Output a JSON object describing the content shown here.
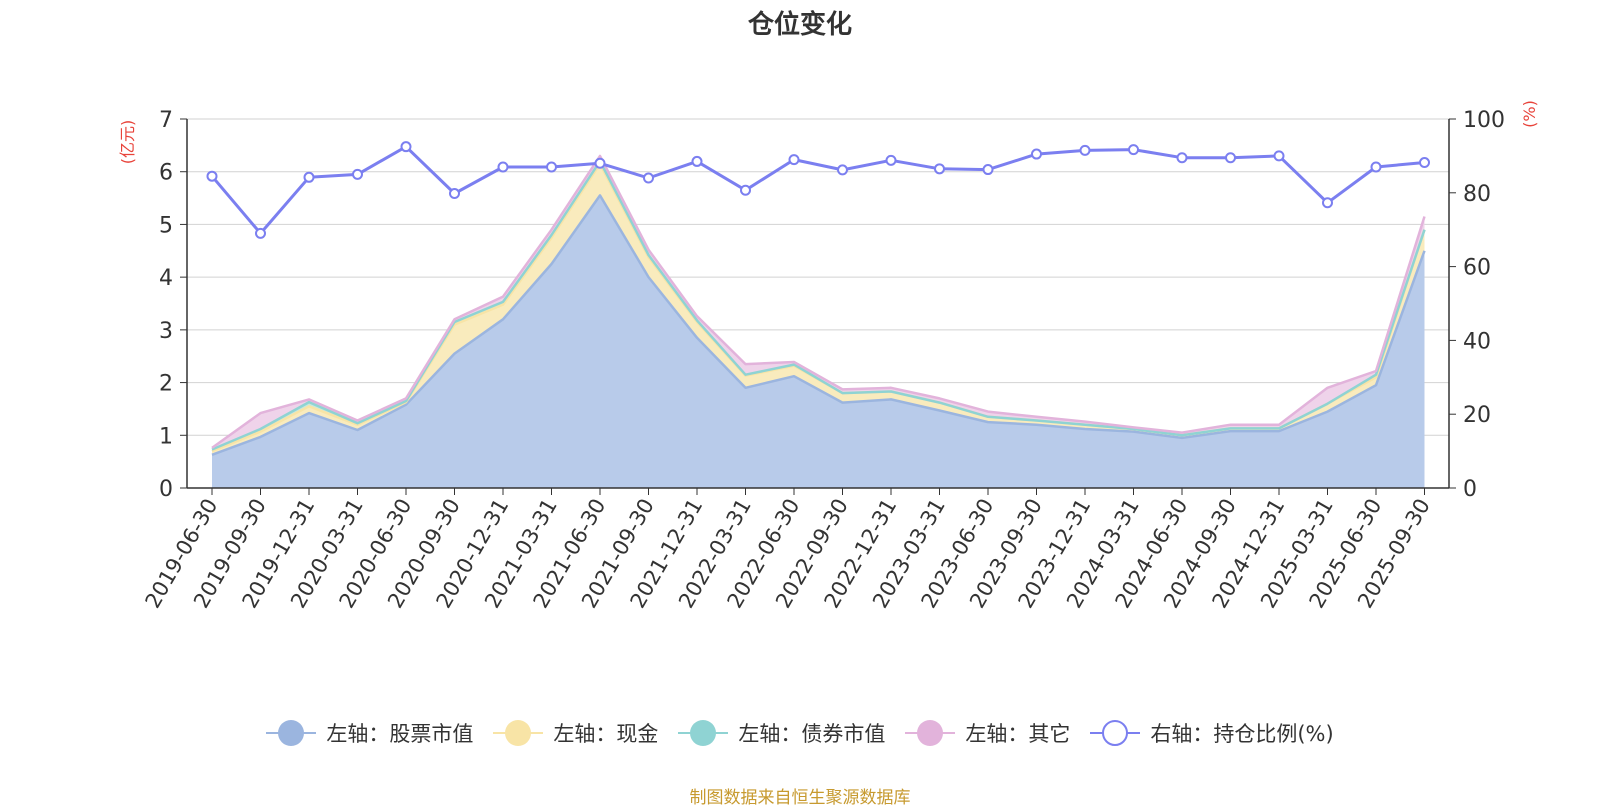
{
  "chart_data": {
    "type": "area",
    "title": "仓位变化",
    "left_axis_unit": "(亿元)",
    "right_axis_unit": "(%)",
    "left_ylim": [
      0,
      7
    ],
    "left_ticks": [
      "0",
      "1",
      "2",
      "3",
      "4",
      "5",
      "6",
      "7"
    ],
    "right_ylim": [
      0,
      100
    ],
    "right_ticks": [
      "0",
      "20",
      "40",
      "60",
      "80",
      "100"
    ],
    "categories": [
      "2019-06-30",
      "2019-09-30",
      "2019-12-31",
      "2020-03-31",
      "2020-06-30",
      "2020-09-30",
      "2020-12-31",
      "2021-03-31",
      "2021-06-30",
      "2021-09-30",
      "2021-12-31",
      "2022-03-31",
      "2022-06-30",
      "2022-09-30",
      "2022-12-31",
      "2023-03-31",
      "2023-06-30",
      "2023-09-30",
      "2023-12-31",
      "2024-03-31",
      "2024-06-30",
      "2024-09-30",
      "2024-12-31",
      "2025-03-31",
      "2025-06-30",
      "2025-09-30"
    ],
    "stacked_series": [
      {
        "name": "左轴：股票市值",
        "color": "#9bb5df",
        "fill": "#b8cbea",
        "values": [
          0.63,
          0.97,
          1.42,
          1.1,
          1.58,
          2.55,
          3.2,
          4.25,
          5.55,
          4.0,
          2.85,
          1.9,
          2.12,
          1.62,
          1.68,
          1.47,
          1.25,
          1.2,
          1.12,
          1.07,
          0.95,
          1.08,
          1.08,
          1.45,
          1.95,
          4.5
        ]
      },
      {
        "name": "左轴：现金",
        "color": "#f8e4a6",
        "fill": "#f9ebbd",
        "values": [
          0.07,
          0.1,
          0.13,
          0.1,
          0.05,
          0.55,
          0.28,
          0.5,
          0.6,
          0.38,
          0.3,
          0.23,
          0.2,
          0.18,
          0.15,
          0.15,
          0.1,
          0.08,
          0.08,
          0.05,
          0.05,
          0.05,
          0.05,
          0.15,
          0.15,
          0.4
        ]
      },
      {
        "name": "左轴：债券市值",
        "color": "#8fd3d3",
        "fill": "#c6e8e0",
        "values": [
          0.03,
          0.05,
          0.08,
          0.03,
          0.02,
          0.05,
          0.05,
          0.05,
          0.05,
          0.04,
          0.03,
          0.02,
          0.02,
          0.0,
          0.0,
          0.0,
          0.0,
          0.0,
          0.0,
          0.0,
          0.0,
          0.0,
          0.0,
          0.0,
          0.05,
          0.0
        ]
      },
      {
        "name": "左轴：其它",
        "color": "#e2b3db",
        "fill": "#efd3ea",
        "values": [
          0.03,
          0.3,
          0.05,
          0.05,
          0.05,
          0.05,
          0.1,
          0.1,
          0.1,
          0.1,
          0.08,
          0.2,
          0.05,
          0.07,
          0.07,
          0.08,
          0.1,
          0.07,
          0.06,
          0.03,
          0.05,
          0.07,
          0.07,
          0.3,
          0.07,
          0.25
        ]
      }
    ],
    "line_series": {
      "name": "右轴：持仓比例(%)",
      "color": "#7b7ff0",
      "values": [
        84.5,
        69.0,
        84.2,
        85.0,
        92.5,
        79.8,
        87.0,
        87.0,
        88.0,
        84.0,
        88.5,
        80.7,
        89.0,
        86.2,
        88.8,
        86.5,
        86.3,
        90.5,
        91.5,
        91.7,
        89.5,
        89.5,
        90.0,
        77.3,
        87.0,
        88.2
      ]
    }
  },
  "legend": [
    {
      "label": "左轴：股票市值",
      "color": "#9bb5df",
      "hollow": false
    },
    {
      "label": "左轴：现金",
      "color": "#f8e4a6",
      "hollow": false
    },
    {
      "label": "左轴：债券市值",
      "color": "#8fd3d3",
      "hollow": false
    },
    {
      "label": "左轴：其它",
      "color": "#e2b3db",
      "hollow": false
    },
    {
      "label": "右轴：持仓比例(%)",
      "color": "#7b7ff0",
      "hollow": true
    }
  ],
  "footer": "制图数据来自恒生聚源数据库"
}
